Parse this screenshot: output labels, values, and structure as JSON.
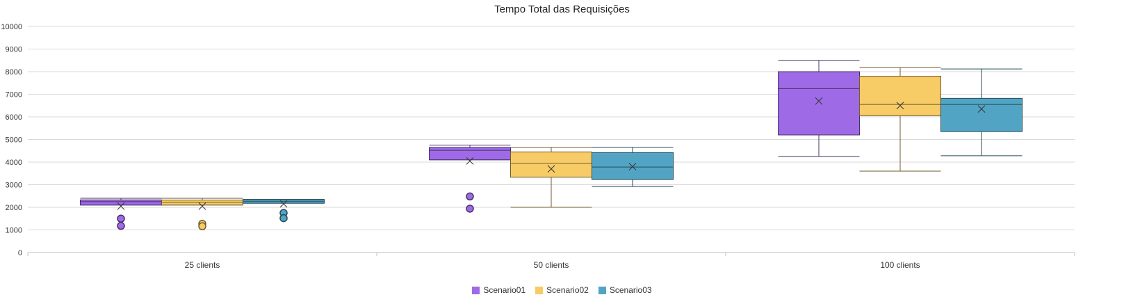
{
  "chart_data": {
    "type": "boxplot",
    "title": "Tempo Total das Requisições",
    "xlabel": "",
    "ylabel": "",
    "ylim": [
      0,
      10000
    ],
    "yticks": [
      0,
      1000,
      2000,
      3000,
      4000,
      5000,
      6000,
      7000,
      8000,
      9000,
      10000
    ],
    "grid": true,
    "legend_position": "bottom",
    "categories": [
      "25 clients",
      "50 clients",
      "100 clients"
    ],
    "series": [
      {
        "name": "Scenario01",
        "color": "#9F6AE6",
        "boxes": [
          {
            "min": 2100,
            "q1": 2100,
            "median": 2250,
            "q3": 2330,
            "max": 2400,
            "mean": 2050,
            "outliers": [
              1500,
              1180
            ]
          },
          {
            "min": 4100,
            "q1": 4100,
            "median": 4520,
            "q3": 4650,
            "max": 4750,
            "mean": 4050,
            "outliers": [
              2480,
              1940
            ]
          },
          {
            "min": 4250,
            "q1": 5200,
            "median": 7250,
            "q3": 8000,
            "max": 8500,
            "mean": 6700,
            "outliers": []
          }
        ]
      },
      {
        "name": "Scenario02",
        "color": "#F7CB66",
        "boxes": [
          {
            "min": 2100,
            "q1": 2100,
            "median": 2220,
            "q3": 2320,
            "max": 2400,
            "mean": 2050,
            "outliers": [
              1270,
              1160
            ]
          },
          {
            "min": 2000,
            "q1": 3330,
            "median": 3950,
            "q3": 4450,
            "max": 4650,
            "mean": 3700,
            "outliers": []
          },
          {
            "min": 3600,
            "q1": 6050,
            "median": 6550,
            "q3": 7800,
            "max": 8180,
            "mean": 6500,
            "outliers": []
          }
        ]
      },
      {
        "name": "Scenario03",
        "color": "#52A4C4",
        "boxes": [
          {
            "min": 2180,
            "q1": 2180,
            "median": 2270,
            "q3": 2350,
            "max": 2350,
            "mean": 2150,
            "outliers": [
              1750,
              1520
            ]
          },
          {
            "min": 2920,
            "q1": 3230,
            "median": 3780,
            "q3": 4420,
            "max": 4650,
            "mean": 3800,
            "outliers": []
          },
          {
            "min": 4280,
            "q1": 5350,
            "median": 6550,
            "q3": 6820,
            "max": 8120,
            "mean": 6350,
            "outliers": []
          }
        ]
      }
    ]
  }
}
